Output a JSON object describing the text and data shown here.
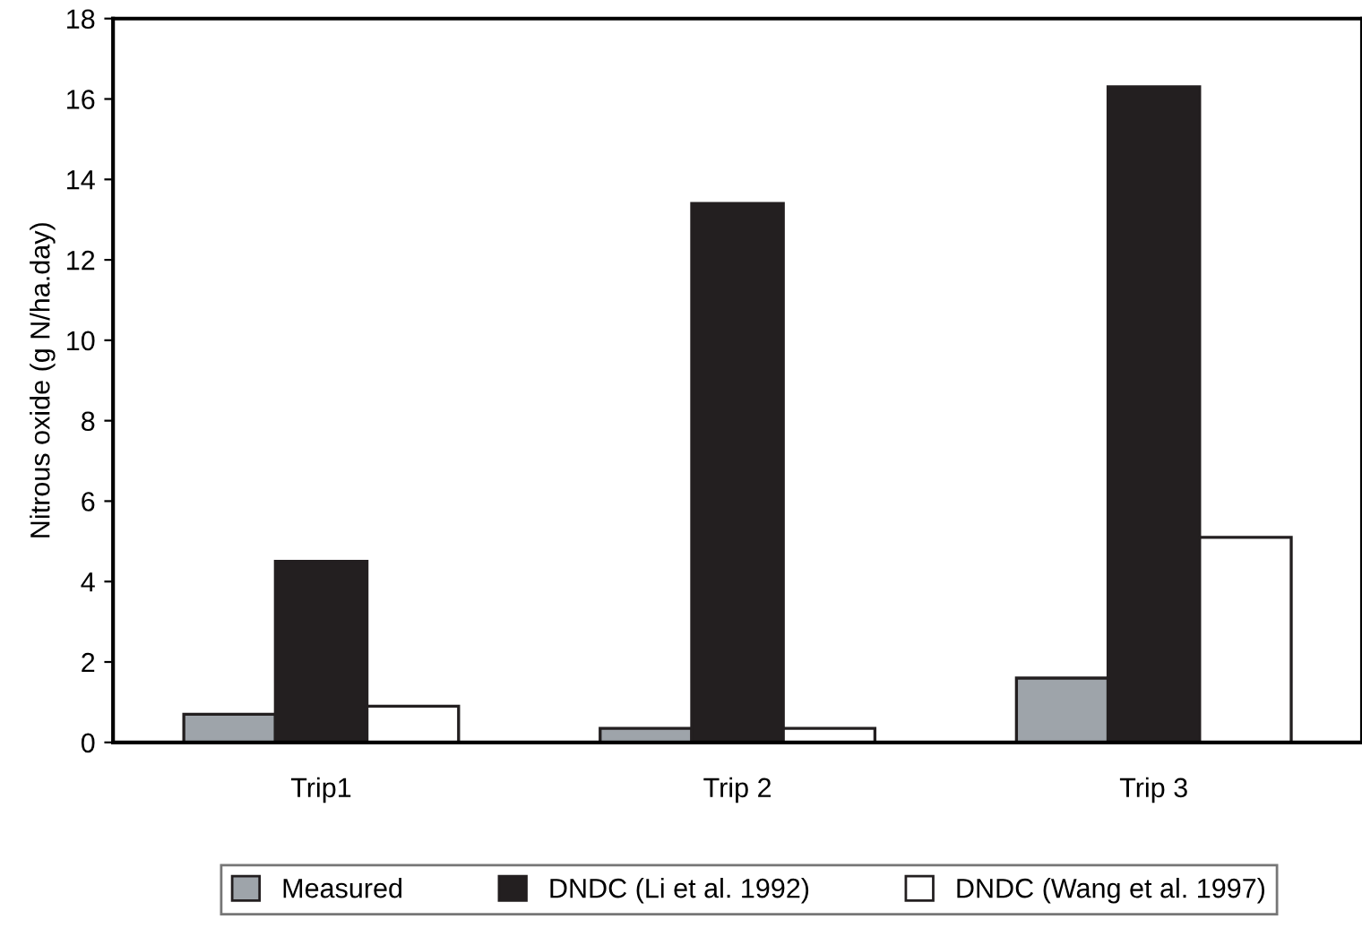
{
  "chart_data": {
    "type": "bar",
    "ylabel": "Nitrous oxide (g N/ha.day)",
    "categories": [
      "Trip1",
      "Trip 2",
      "Trip 3"
    ],
    "series": [
      {
        "name": "Measured",
        "color": "#9ea4aa",
        "values": [
          0.7,
          0.35,
          1.6
        ]
      },
      {
        "name": "DNDC (Li et al. 1992)",
        "color": "#231f20",
        "values": [
          4.5,
          13.4,
          16.3
        ]
      },
      {
        "name": "DNDC (Wang et al. 1997)",
        "color": "#ffffff",
        "values": [
          0.9,
          0.35,
          5.1
        ]
      }
    ],
    "ylim": [
      0,
      18
    ],
    "yticks": [
      0,
      2,
      4,
      6,
      8,
      10,
      12,
      14,
      16,
      18
    ],
    "grid": false,
    "legend": "bottom"
  }
}
